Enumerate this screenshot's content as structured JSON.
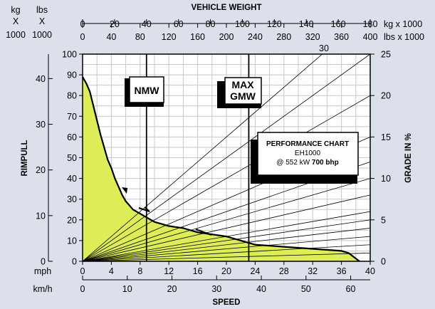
{
  "chart_data": {
    "type": "line",
    "title": "",
    "top_axis": {
      "label": "VEHICLE WEIGHT",
      "kg_unit_label": "kg",
      "kg_x_label": "X",
      "kg_1000_label": "1000",
      "lbs_unit_label": "lbs",
      "lbs_x_label": "X",
      "lbs_1000_label": "1000",
      "kg_ticks": [
        "0",
        "20",
        "40",
        "60",
        "80",
        "100",
        "120",
        "140",
        "160",
        "180"
      ],
      "kg_suffix": "kg x 1000",
      "lbs_ticks": [
        "0",
        "40",
        "80",
        "120",
        "160",
        "200",
        "240",
        "280",
        "320",
        "360",
        "400"
      ],
      "lbs_suffix": "lbs x 1000"
    },
    "left_axis": {
      "label": "RIMPULL",
      "kg_ticks": [
        "0",
        "10",
        "20",
        "30",
        "40"
      ],
      "lbs_ticks": [
        "0",
        "10",
        "20",
        "30",
        "40",
        "50",
        "60",
        "70",
        "80",
        "90",
        "100"
      ],
      "ylim": [
        0,
        100
      ]
    },
    "right_axis": {
      "label": "GRADE IN %",
      "ticks": [
        "0",
        "5",
        "10",
        "15",
        "20",
        "25"
      ],
      "ylim": [
        0,
        25
      ],
      "top_label": "30"
    },
    "bottom_axis": {
      "label": "SPEED",
      "mph_label": "mph",
      "mph_ticks": [
        "0",
        "4",
        "8",
        "12",
        "16",
        "20",
        "24",
        "28",
        "32",
        "36",
        "40"
      ],
      "kmh_label": "km/h",
      "kmh_ticks": [
        "0",
        "10",
        "20",
        "30",
        "40",
        "50",
        "60"
      ],
      "xlim_mph": [
        0,
        40
      ]
    },
    "grid": true,
    "fill_color": "#dded58",
    "grid_color": "#c8c8c8",
    "markers": [
      {
        "label": "NMW",
        "weight_kg_x1000": 40
      },
      {
        "label": "MAX GMW",
        "label_line1": "MAX",
        "label_line2": "GMW",
        "weight_kg_x1000": 104
      }
    ],
    "info_box": {
      "title": "PERFORMANCE CHART",
      "model": "EH1000",
      "power_prefix": "@ 552 kW ",
      "power_bold": "700 bhp"
    },
    "grade_lines_percent": [
      1,
      2,
      3,
      4,
      5,
      6,
      8,
      10,
      12,
      15,
      20,
      25,
      30
    ],
    "series": [
      {
        "x": [
          0,
          0.5,
          1,
          1.5,
          2,
          2.5,
          3,
          3.5,
          4,
          4.5,
          5,
          5.5,
          6,
          6.5,
          7,
          7.5,
          8,
          9,
          10,
          11,
          12,
          14,
          16,
          18,
          20,
          22,
          24,
          28,
          32,
          36,
          37,
          38.5
        ],
        "y": [
          89,
          86,
          82,
          75,
          68,
          61,
          55,
          49,
          45,
          40,
          36,
          32,
          29,
          27,
          25,
          24,
          23,
          21,
          19,
          18,
          17,
          16,
          14,
          13,
          12,
          10,
          8,
          7,
          6,
          5,
          4,
          0
        ]
      }
    ]
  }
}
